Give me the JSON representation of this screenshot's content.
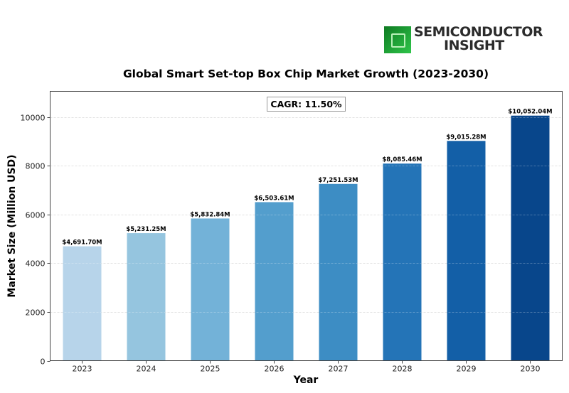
{
  "logo": {
    "line1": "SEMICONDUCTOR",
    "line2": "INSIGHT",
    "icon": "chip-icon"
  },
  "chart_data": {
    "type": "bar",
    "title": "Global Smart Set-top Box Chip Market Growth (2023-2030)",
    "xlabel": "Year",
    "ylabel": "Market Size (Million USD)",
    "categories": [
      "2023",
      "2024",
      "2025",
      "2026",
      "2027",
      "2028",
      "2029",
      "2030"
    ],
    "values": [
      4691.7,
      5231.25,
      5832.84,
      6503.61,
      7251.53,
      8085.46,
      9015.28,
      10052.04
    ],
    "data_labels": [
      "$4,691.70M",
      "$5,231.25M",
      "$5,832.84M",
      "$6,503.61M",
      "$7,251.53M",
      "$8,085.46M",
      "$9,015.28M",
      "$10,052.04M"
    ],
    "colors": [
      "#b7d4ea",
      "#95c5df",
      "#73b2d8",
      "#539ecd",
      "#3d8dc4",
      "#2474b7",
      "#135fa7",
      "#08468b"
    ],
    "ylim": [
      0,
      11050
    ],
    "yticks": [
      0,
      2000,
      4000,
      6000,
      8000,
      10000
    ],
    "grid": true,
    "annotation": "CAGR: 11.50%"
  }
}
